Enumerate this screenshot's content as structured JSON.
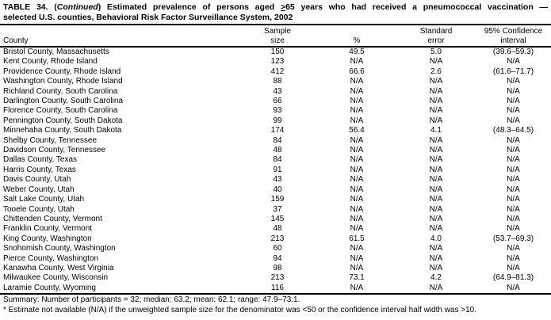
{
  "colors": {
    "background": "#ffffff",
    "text": "#000000",
    "rule": "#000000"
  },
  "title": {
    "part1": "TABLE 34. (",
    "part2_italic": "Continued",
    "part3": ") Estimated prevalence of persons aged ",
    "part4_gte": ">",
    "part5": "65 years who had received a pneumococcal vaccination —",
    "line2": "selected U.S. counties, Behavioral Risk Factor Surveillance System, 2002"
  },
  "table": {
    "headers": {
      "county": "County",
      "sample_line1": "Sample",
      "sample_line2": "size",
      "percent": "%",
      "se_line1": "Standard",
      "se_line2": "error",
      "ci_line1": "95% Confidence",
      "ci_line2": "interval"
    },
    "rows": [
      [
        "Bristol County, Massachusetts",
        "150",
        "49.5",
        "5.0",
        "(39.6–59.3)"
      ],
      [
        "Kent County, Rhode Island",
        "123",
        "N/A",
        "N/A",
        "N/A"
      ],
      [
        "Providence County, Rhode Island",
        "412",
        "66.6",
        "2.6",
        "(61.6–71.7)"
      ],
      [
        "Washington County, Rhode Island",
        "88",
        "N/A",
        "N/A",
        "N/A"
      ],
      [
        "Richland County, South Carolina",
        "43",
        "N/A",
        "N/A",
        "N/A"
      ],
      [
        "Darlington County, South Carolina",
        "66",
        "N/A",
        "N/A",
        "N/A"
      ],
      [
        "Florence County, South Carolina",
        "93",
        "N/A",
        "N/A",
        "N/A"
      ],
      [
        "Pennington County, South Dakota",
        "99",
        "N/A",
        "N/A",
        "N/A"
      ],
      [
        "Minnehaha County, South Dakota",
        "174",
        "56.4",
        "4.1",
        "(48.3–64.5)"
      ],
      [
        "Shelby County, Tennessee",
        "84",
        "N/A",
        "N/A",
        "N/A"
      ],
      [
        "Davidson County, Tennessee",
        "48",
        "N/A",
        "N/A",
        "N/A"
      ],
      [
        "Dallas County, Texas",
        "84",
        "N/A",
        "N/A",
        "N/A"
      ],
      [
        "Harris County, Texas",
        "91",
        "N/A",
        "N/A",
        "N/A"
      ],
      [
        "Davis County, Utah",
        "43",
        "N/A",
        "N/A",
        "N/A"
      ],
      [
        "Weber County, Utah",
        "40",
        "N/A",
        "N/A",
        "N/A"
      ],
      [
        "Salt Lake County, Utah",
        "159",
        "N/A",
        "N/A",
        "N/A"
      ],
      [
        "Tooele County, Utah",
        "37",
        "N/A",
        "N/A",
        "N/A"
      ],
      [
        "Chittenden County, Vermont",
        "145",
        "N/A",
        "N/A",
        "N/A"
      ],
      [
        "Franklin County, Vermont",
        "48",
        "N/A",
        "N/A",
        "N/A"
      ],
      [
        "King County, Washington",
        "213",
        "61.5",
        "4.0",
        "(53.7–69.3)"
      ],
      [
        "Snohomish County, Washington",
        "60",
        "N/A",
        "N/A",
        "N/A"
      ],
      [
        "Pierce County, Washington",
        "94",
        "N/A",
        "N/A",
        "N/A"
      ],
      [
        "Kanawha County, West Virginia",
        "98",
        "N/A",
        "N/A",
        "N/A"
      ],
      [
        "Milwaukee County, Wisconsin",
        "213",
        "73.1",
        "4.2",
        "(64.9–81.3)"
      ],
      [
        "Laramie County, Wyoming",
        "116",
        "N/A",
        "N/A",
        "N/A"
      ]
    ]
  },
  "summary": "Summary: Number of participants = 32; median: 63.2; mean: 62.1; range: 47.9–73.1.",
  "footnote": "* Estimate not available (N/A) if the unweighted sample size for the denominator was <50 or the confidence interval half width was >10."
}
